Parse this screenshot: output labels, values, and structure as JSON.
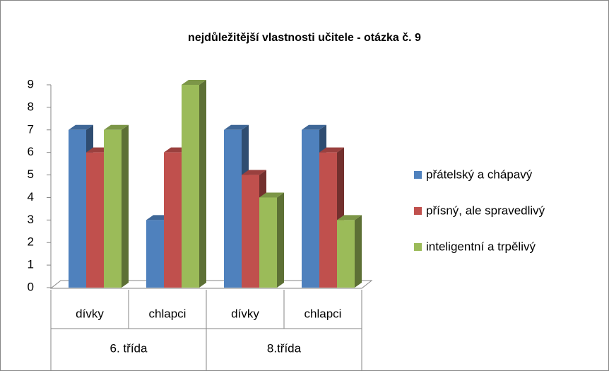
{
  "chart_data": {
    "type": "bar",
    "title": "nejdůležitější vlastnosti učitele - otázka č. 9",
    "categories": [
      "dívky",
      "chlapci",
      "dívky",
      "chlapci"
    ],
    "groups": [
      "6. třída",
      "8.třída"
    ],
    "series": [
      {
        "name": "přátelský a chápavý",
        "color": "#4f81bd",
        "values": [
          7,
          3,
          7,
          7
        ]
      },
      {
        "name": "přísný, ale spravedlivý",
        "color": "#c0504d",
        "values": [
          6,
          6,
          5,
          6
        ]
      },
      {
        "name": "inteligentní a trpělivý",
        "color": "#9bbb59",
        "values": [
          7,
          9,
          4,
          3
        ]
      }
    ],
    "ylim": [
      0,
      9
    ],
    "yticks": [
      0,
      1,
      2,
      3,
      4,
      5,
      6,
      7,
      8,
      9
    ],
    "legend": "right"
  }
}
